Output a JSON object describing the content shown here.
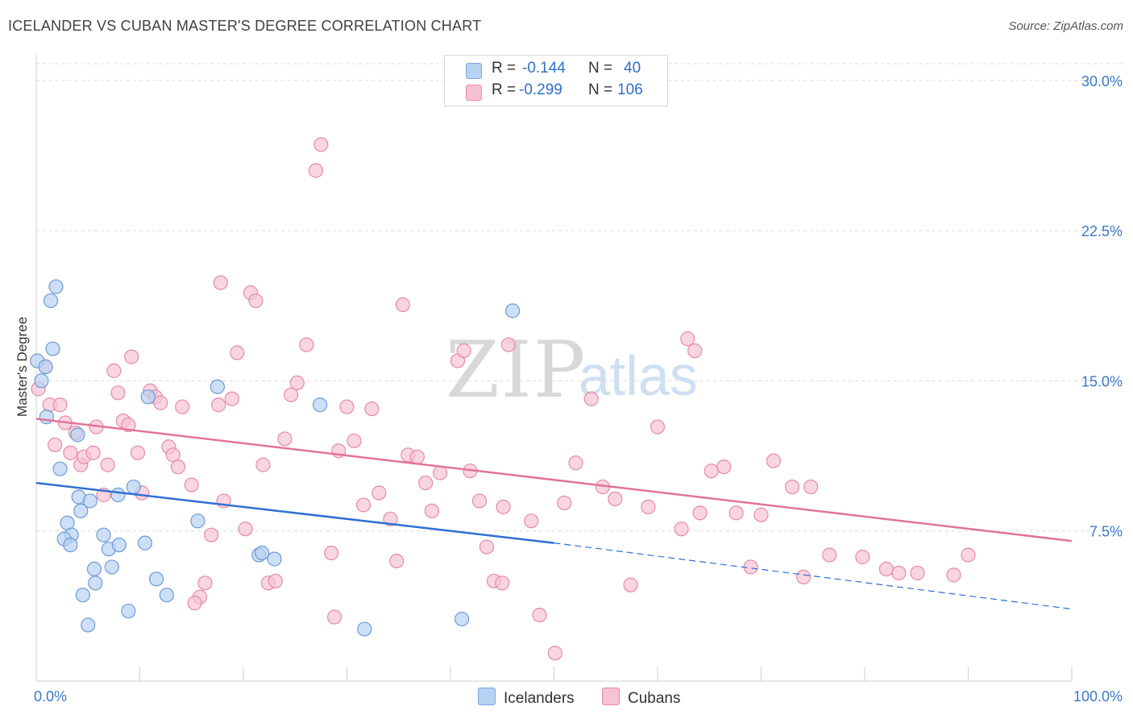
{
  "header": {
    "title": "ICELANDER VS CUBAN MASTER'S DEGREE CORRELATION CHART",
    "source": "Source: ZipAtlas.com"
  },
  "legend_top": {
    "rows": [
      {
        "r_label": "R =",
        "r_value": "-0.144",
        "n_label": "N =",
        "n_value": "40"
      },
      {
        "r_label": "R =",
        "r_value": "-0.299",
        "n_label": "N =",
        "n_value": "106"
      }
    ]
  },
  "legend_bottom": {
    "items": [
      {
        "label": "Icelanders"
      },
      {
        "label": "Cubans"
      }
    ]
  },
  "colors": {
    "icelanders_fill": "#b8d2f2",
    "icelanders_stroke": "#6c9bd8",
    "icelanders_line": "#2f6fd3",
    "cubans_fill": "#f7c3d4",
    "cubans_stroke": "#e58aa9",
    "cubans_line": "#e2739a",
    "tick_label": "#3b78c8",
    "grid": "#dcdcdc",
    "watermark": "#d8d8d8"
  },
  "watermark": {
    "zip": "ZIP",
    "atlas": "atlas"
  },
  "chart_data": {
    "type": "scatter",
    "title": "ICELANDER VS CUBAN MASTER'S DEGREE CORRELATION CHART",
    "xlabel": "",
    "ylabel": "Master's Degree",
    "xlim": [
      0,
      100
    ],
    "ylim": [
      0,
      31
    ],
    "x_tick_labels": [
      "0.0%",
      "100.0%"
    ],
    "y_ticks": [
      7.5,
      15.0,
      22.5,
      30.0
    ],
    "y_tick_labels": [
      "7.5%",
      "15.0%",
      "22.5%",
      "30.0%"
    ],
    "grid": "horizontal dashed",
    "legend_position": "top-center",
    "series": [
      {
        "name": "Icelanders",
        "r": -0.144,
        "n": 40,
        "trend": {
          "x0": 0,
          "y0": 9.9,
          "x1": 50,
          "y1": 6.9,
          "dashed_to_x": 100,
          "dashed_to_y": 3.6
        },
        "points": [
          [
            0.1,
            16.0
          ],
          [
            0.5,
            15.0
          ],
          [
            0.9,
            15.7
          ],
          [
            1.4,
            19.0
          ],
          [
            1.6,
            16.6
          ],
          [
            1.9,
            19.7
          ],
          [
            1.0,
            13.2
          ],
          [
            2.3,
            10.6
          ],
          [
            4.0,
            12.3
          ],
          [
            4.1,
            9.2
          ],
          [
            3.0,
            7.9
          ],
          [
            3.4,
            7.3
          ],
          [
            4.3,
            8.5
          ],
          [
            2.7,
            7.1
          ],
          [
            3.3,
            6.8
          ],
          [
            5.2,
            9.0
          ],
          [
            6.5,
            7.3
          ],
          [
            7.0,
            6.6
          ],
          [
            7.3,
            5.7
          ],
          [
            5.6,
            5.6
          ],
          [
            5.7,
            4.9
          ],
          [
            4.5,
            4.3
          ],
          [
            8.0,
            6.8
          ],
          [
            7.9,
            9.3
          ],
          [
            9.4,
            9.7
          ],
          [
            10.5,
            6.9
          ],
          [
            10.8,
            14.2
          ],
          [
            11.6,
            5.1
          ],
          [
            12.6,
            4.3
          ],
          [
            15.6,
            8.0
          ],
          [
            17.5,
            14.7
          ],
          [
            21.5,
            6.3
          ],
          [
            21.8,
            6.4
          ],
          [
            23.0,
            6.1
          ],
          [
            27.4,
            13.8
          ],
          [
            31.7,
            2.6
          ],
          [
            41.1,
            3.1
          ],
          [
            46.0,
            18.5
          ],
          [
            5.0,
            2.8
          ],
          [
            8.9,
            3.5
          ]
        ]
      },
      {
        "name": "Cubans",
        "r": -0.299,
        "n": 106,
        "trend": {
          "x0": 0,
          "y0": 13.1,
          "x1": 100,
          "y1": 7.0
        },
        "points": [
          [
            0.2,
            14.6
          ],
          [
            0.9,
            15.7
          ],
          [
            1.3,
            13.8
          ],
          [
            1.8,
            11.8
          ],
          [
            2.3,
            13.8
          ],
          [
            2.8,
            12.9
          ],
          [
            3.3,
            11.4
          ],
          [
            3.8,
            12.4
          ],
          [
            4.3,
            10.8
          ],
          [
            4.6,
            11.2
          ],
          [
            5.5,
            11.4
          ],
          [
            5.8,
            12.7
          ],
          [
            6.5,
            9.3
          ],
          [
            6.9,
            10.8
          ],
          [
            7.5,
            15.5
          ],
          [
            7.9,
            14.4
          ],
          [
            8.4,
            13.0
          ],
          [
            8.9,
            12.8
          ],
          [
            9.2,
            16.2
          ],
          [
            9.8,
            11.4
          ],
          [
            10.2,
            9.4
          ],
          [
            11.0,
            14.5
          ],
          [
            11.5,
            14.2
          ],
          [
            12.0,
            13.9
          ],
          [
            12.8,
            11.7
          ],
          [
            13.2,
            11.3
          ],
          [
            13.7,
            10.7
          ],
          [
            14.1,
            13.7
          ],
          [
            15.0,
            9.8
          ],
          [
            15.8,
            4.2
          ],
          [
            16.3,
            4.9
          ],
          [
            16.9,
            7.3
          ],
          [
            17.6,
            13.8
          ],
          [
            18.1,
            9.0
          ],
          [
            18.9,
            14.1
          ],
          [
            19.4,
            16.4
          ],
          [
            20.2,
            7.6
          ],
          [
            20.7,
            19.4
          ],
          [
            21.2,
            19.0
          ],
          [
            21.9,
            10.8
          ],
          [
            22.4,
            4.9
          ],
          [
            23.1,
            5.0
          ],
          [
            24.0,
            12.1
          ],
          [
            24.6,
            14.3
          ],
          [
            25.2,
            14.9
          ],
          [
            26.1,
            16.8
          ],
          [
            27.0,
            25.5
          ],
          [
            27.5,
            26.8
          ],
          [
            28.5,
            6.4
          ],
          [
            29.2,
            11.5
          ],
          [
            30.0,
            13.7
          ],
          [
            30.7,
            12.0
          ],
          [
            31.6,
            8.8
          ],
          [
            32.4,
            13.6
          ],
          [
            33.1,
            9.4
          ],
          [
            34.2,
            8.1
          ],
          [
            34.8,
            6.0
          ],
          [
            35.4,
            18.8
          ],
          [
            35.9,
            11.3
          ],
          [
            36.8,
            11.2
          ],
          [
            37.6,
            9.9
          ],
          [
            38.2,
            8.5
          ],
          [
            39.0,
            10.4
          ],
          [
            40.7,
            16.0
          ],
          [
            41.3,
            16.5
          ],
          [
            41.9,
            10.5
          ],
          [
            42.8,
            9.0
          ],
          [
            43.5,
            6.7
          ],
          [
            44.2,
            5.0
          ],
          [
            45.1,
            8.7
          ],
          [
            45.6,
            16.8
          ],
          [
            47.8,
            8.0
          ],
          [
            48.6,
            3.3
          ],
          [
            51.0,
            8.9
          ],
          [
            52.1,
            10.9
          ],
          [
            53.6,
            14.1
          ],
          [
            54.7,
            9.7
          ],
          [
            55.9,
            9.1
          ],
          [
            57.4,
            4.8
          ],
          [
            59.1,
            8.7
          ],
          [
            60.0,
            12.7
          ],
          [
            62.3,
            7.6
          ],
          [
            62.9,
            17.1
          ],
          [
            63.6,
            16.5
          ],
          [
            64.1,
            8.4
          ],
          [
            65.2,
            10.5
          ],
          [
            66.4,
            10.7
          ],
          [
            67.6,
            8.4
          ],
          [
            69.0,
            5.7
          ],
          [
            70.0,
            8.3
          ],
          [
            71.2,
            11.0
          ],
          [
            73.0,
            9.7
          ],
          [
            74.1,
            5.2
          ],
          [
            74.8,
            9.7
          ],
          [
            76.6,
            6.3
          ],
          [
            79.8,
            6.2
          ],
          [
            82.1,
            5.6
          ],
          [
            83.3,
            5.4
          ],
          [
            85.1,
            5.4
          ],
          [
            88.6,
            5.3
          ],
          [
            90.0,
            6.3
          ],
          [
            28.8,
            3.2
          ],
          [
            45.0,
            4.9
          ],
          [
            50.1,
            1.4
          ],
          [
            15.3,
            3.9
          ],
          [
            17.8,
            19.9
          ]
        ]
      }
    ]
  }
}
